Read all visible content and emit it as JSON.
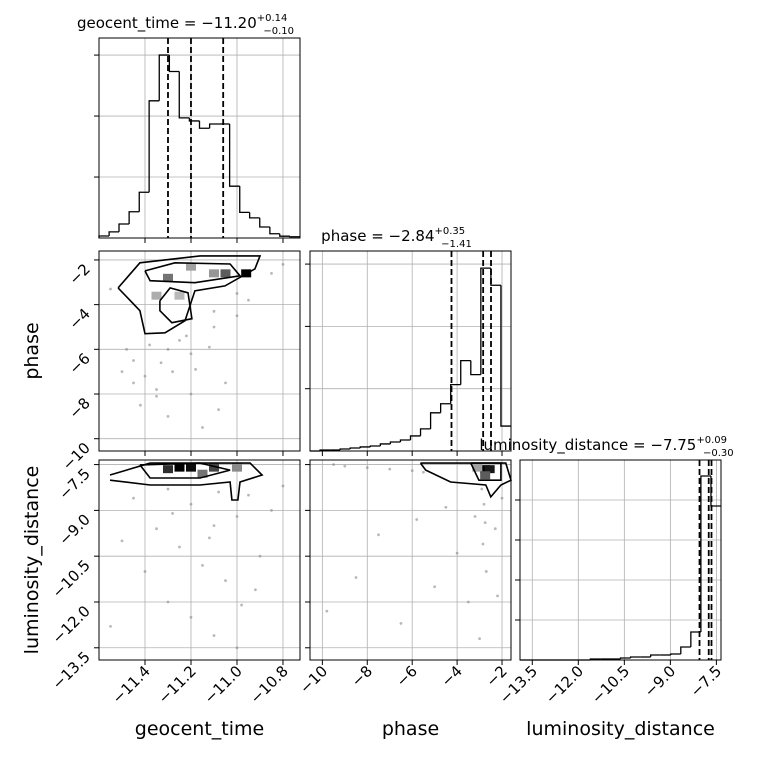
{
  "chart_data": {
    "type": "corner",
    "parameters": [
      {
        "name": "geocent_time",
        "lim": [
          -11.6,
          -10.726
        ],
        "ticks": [
          {
            "value": -11.4,
            "label": "−11.4"
          },
          {
            "value": -11.2,
            "label": "−11.2"
          },
          {
            "value": -11.0,
            "label": "−11.0"
          },
          {
            "value": -10.8,
            "label": "−10.8"
          }
        ],
        "title": {
          "label": "geocent_time = −11.20",
          "upper": "+0.14",
          "lower": "−0.10"
        },
        "quantiles": [
          -11.3,
          -11.2,
          -11.06
        ],
        "hist": {
          "ylim": [
            0,
            3280
          ],
          "yticks": [
            1000,
            2000,
            3000
          ],
          "bins": [
            -11.6,
            -11.556,
            -11.513,
            -11.469,
            -11.425,
            -11.382,
            -11.338,
            -11.294,
            -11.251,
            -11.207,
            -11.163,
            -11.119,
            -11.076,
            -11.032,
            -10.988,
            -10.945,
            -10.901,
            -10.857,
            -10.814,
            -10.77,
            -10.726
          ],
          "values": [
            33,
            100,
            230,
            430,
            750,
            2250,
            3000,
            2730,
            1970,
            1920,
            1800,
            1870,
            1870,
            850,
            420,
            330,
            180,
            70,
            30,
            20
          ]
        }
      },
      {
        "name": "phase",
        "lim": [
          -10.55,
          -1.6
        ],
        "ticks": [
          {
            "value": -10,
            "label": "−10"
          },
          {
            "value": -8,
            "label": "−8"
          },
          {
            "value": -6,
            "label": "−6"
          },
          {
            "value": -4,
            "label": "−4"
          },
          {
            "value": -2,
            "label": "−2"
          }
        ],
        "title": {
          "label": "phase = −2.84",
          "upper": "+0.35",
          "lower": "−1.41"
        },
        "quantiles": [
          -4.25,
          -2.84,
          -2.49
        ],
        "hist": {
          "ylim": [
            0,
            3210
          ],
          "yticks": [
            1000,
            2000,
            3000
          ],
          "bins": [
            -10.55,
            -10.103,
            -9.655,
            -9.208,
            -8.76,
            -8.313,
            -7.865,
            -7.418,
            -6.97,
            -6.523,
            -6.075,
            -5.628,
            -5.18,
            -4.733,
            -4.285,
            -3.838,
            -3.39,
            -2.943,
            -2.495,
            -2.048,
            -1.6
          ],
          "values": [
            0,
            16,
            16,
            32,
            48,
            65,
            80,
            113,
            145,
            177,
            242,
            355,
            613,
            758,
            1065,
            1450,
            1226,
            2935,
            2660,
            400
          ]
        }
      },
      {
        "name": "luminosity_distance",
        "lim": [
          -13.9,
          -7.35
        ],
        "ticks": [
          {
            "value": -13.5,
            "label": "−13.5"
          },
          {
            "value": -12.0,
            "label": "−12.0"
          },
          {
            "value": -10.5,
            "label": "−10.5"
          },
          {
            "value": -9.0,
            "label": "−9.0"
          },
          {
            "value": -7.5,
            "label": "−7.5"
          }
        ],
        "title": {
          "label": "luminosity_distance = −7.75",
          "upper": "+0.09",
          "lower": "−0.30"
        },
        "quantiles": [
          -8.05,
          -7.75,
          -7.66
        ],
        "hist": {
          "ylim": [
            0,
            5000
          ],
          "yticks": [
            1000,
            2000,
            3000,
            4000
          ],
          "bins": [
            -13.9,
            -13.5725,
            -13.245,
            -12.9175,
            -12.59,
            -12.2625,
            -11.935,
            -11.6075,
            -11.28,
            -10.9525,
            -10.625,
            -10.2975,
            -9.97,
            -9.6425,
            -9.315,
            -8.9875,
            -8.66,
            -8.3325,
            -8.005,
            -7.6775,
            -7.35
          ],
          "values": [
            0,
            0,
            0,
            0,
            0,
            0,
            0,
            25,
            25,
            25,
            50,
            75,
            75,
            125,
            125,
            150,
            325,
            700,
            4600,
            3850
          ]
        }
      }
    ],
    "pairs": [
      {
        "points": {
          "x": [
            -11.45,
            -11.4,
            -11.35,
            -11.5,
            -11.3,
            -11.25,
            -11.2,
            -11.1,
            -11.0,
            -10.95,
            -11.42,
            -11.3,
            -11.2,
            -11.15,
            -11.05,
            -11.48,
            -11.38,
            -11.33,
            -11.28,
            -11.22,
            -10.85,
            -10.8,
            -11.55,
            -11.1,
            -11.0,
            -11.45,
            -11.35,
            -11.18,
            -11.12,
            -11.08
          ],
          "y": [
            -6.5,
            -7.2,
            -7.8,
            -7.0,
            -6.0,
            -5.6,
            -6.2,
            -5.0,
            -4.5,
            -3.8,
            -8.5,
            -9.0,
            -8.0,
            -9.5,
            -7.5,
            -6.0,
            -5.8,
            -6.6,
            -7.0,
            -5.4,
            -2.6,
            -2.2,
            -3.3,
            -4.3,
            -3.5,
            -7.5,
            -8.1,
            -6.9,
            -5.9,
            -8.7
          ]
        },
        "cells": {
          "x": [
            -10.96,
            -11.05,
            -11.3,
            -11.35,
            -11.25,
            -11.2,
            -11.1
          ],
          "y": [
            -2.6,
            -2.6,
            -2.8,
            -3.6,
            -3.6,
            -2.3,
            -2.6
          ],
          "values": [
            1,
            0.6,
            0.5,
            0.25,
            0.2,
            0.3,
            0.35
          ]
        },
        "contours": [
          {
            "x": [
              -11.517,
              -11.422,
              -11.161,
              -10.9,
              -10.922,
              -11.052,
              -11.183,
              -11.226,
              -11.313,
              -11.4,
              -11.422,
              -11.517
            ],
            "y": [
              -3.25,
              -2.13,
              -1.82,
              -1.82,
              -2.4,
              -3.16,
              -3.38,
              -4.72,
              -5.26,
              -5.3,
              -4.27,
              -3.25
            ]
          },
          {
            "x": [
              -11.4,
              -11.27,
              -11.03,
              -10.987,
              -11.183,
              -11.378,
              -11.4
            ],
            "y": [
              -2.49,
              -2.13,
              -2.18,
              -2.71,
              -3.02,
              -2.93,
              -2.49
            ]
          },
          {
            "x": [
              -11.335,
              -11.291,
              -11.213,
              -11.196,
              -11.283,
              -11.335,
              -11.335
            ],
            "y": [
              -3.83,
              -3.25,
              -3.47,
              -4.63,
              -4.81,
              -4.27,
              -3.83
            ]
          }
        ]
      },
      {
        "points": {
          "x": [
            -11.3,
            -11.2,
            -11.1,
            -11.0,
            -10.95,
            -11.25,
            -11.15,
            -11.05,
            -10.98,
            -11.35,
            -11.4,
            -11.2,
            -11.1,
            -10.9,
            -10.85,
            -11.45,
            -11.5,
            -11.3,
            -11.0,
            -10.8,
            -11.12,
            -11.28,
            -11.08,
            -10.92,
            -11.55
          ],
          "y": [
            -8.3,
            -8.8,
            -9.5,
            -9.2,
            -8.5,
            -10.2,
            -10.8,
            -11.3,
            -12.1,
            -9.6,
            -11.0,
            -12.5,
            -13.1,
            -10.5,
            -9.0,
            -8.6,
            -10.0,
            -12.0,
            -13.5,
            -8.2,
            -9.9,
            -9.1,
            -8.4,
            -11.6,
            -12.8
          ]
        },
        "cells": {
          "x": [
            -11.25,
            -11.2,
            -11.3,
            -11.1,
            -11.15,
            -11.0
          ],
          "y": [
            -7.6,
            -7.6,
            -7.65,
            -7.6,
            -7.8,
            -7.6
          ],
          "values": [
            1,
            0.95,
            0.8,
            0.7,
            0.5,
            0.4
          ]
        },
        "contours": [
          {
            "x": [
              -11.552,
              -11.378,
              -10.943,
              -10.891,
              -10.987,
              -10.996,
              -11.022,
              -11.03,
              -11.161,
              -11.378,
              -11.552
            ],
            "y": [
              -7.84,
              -7.45,
              -7.45,
              -7.84,
              -8.07,
              -8.66,
              -8.66,
              -8.07,
              -8.17,
              -8.17,
              -8.01
            ]
          },
          {
            "x": [
              -11.422,
              -11.161,
              -11.03,
              -11.161,
              -11.378,
              -11.422
            ],
            "y": [
              -7.51,
              -7.45,
              -7.68,
              -7.94,
              -7.94,
              -7.51
            ]
          }
        ]
      },
      {
        "points": {
          "x": [
            -9.5,
            -9.0,
            -8.0,
            -7.0,
            -6.0,
            -5.5,
            -2.8,
            -2.75,
            -2.85,
            -2.7,
            -3.2,
            -4.0,
            -5.0,
            -6.5,
            -3.5,
            -2.3,
            -2.0,
            -4.5,
            -7.5,
            -8.5,
            -9.8,
            -3.0,
            -2.2,
            -5.8,
            -2.9
          ],
          "y": [
            -7.5,
            -7.55,
            -7.6,
            -7.65,
            -7.7,
            -7.75,
            -8.8,
            -9.4,
            -10.1,
            -11.0,
            -9.2,
            -10.4,
            -11.5,
            -12.7,
            -12.0,
            -9.6,
            -8.6,
            -8.9,
            -9.8,
            -11.2,
            -12.3,
            -13.2,
            -11.8,
            -9.3,
            -8.3
          ]
        },
        "cells": {
          "x": [
            -2.75,
            -2.55,
            -3.1,
            -2.75
          ],
          "y": [
            -7.65,
            -7.65,
            -7.6,
            -7.85
          ],
          "values": [
            1,
            0.9,
            0.3,
            0.6
          ]
        },
        "contours": [
          {
            "x": [
              -5.63,
              -1.83,
              -1.6,
              -2.05,
              -2.5,
              -2.72,
              -4.29,
              -5.4,
              -5.63
            ],
            "y": [
              -7.45,
              -7.45,
              -8.01,
              -8.17,
              -8.56,
              -8.17,
              -8.07,
              -7.68,
              -7.45
            ]
          },
          {
            "x": [
              -3.39,
              -2.05,
              -2.05,
              -3.03,
              -3.39
            ],
            "y": [
              -7.45,
              -7.45,
              -8.01,
              -8.01,
              -7.45
            ]
          }
        ]
      }
    ]
  }
}
